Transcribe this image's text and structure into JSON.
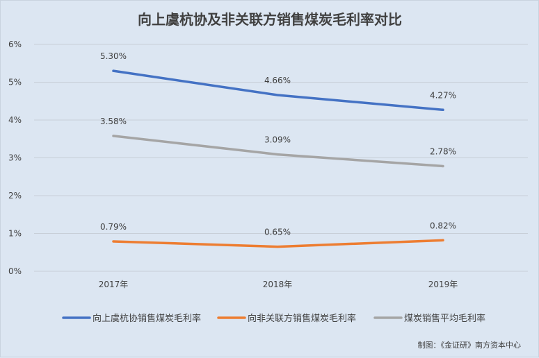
{
  "chart_data": {
    "type": "line",
    "title": "向上虞杭协及非关联方销售煤炭毛利率对比",
    "categories": [
      "2017年",
      "2018年",
      "2019年"
    ],
    "ylim": [
      0,
      6
    ],
    "yticks": [
      "0%",
      "1%",
      "2%",
      "3%",
      "4%",
      "5%",
      "6%"
    ],
    "grid": true,
    "legend": "bottom",
    "series": [
      {
        "name": "向上虞杭协销售煤炭毛利率",
        "values": [
          5.3,
          4.66,
          4.27
        ],
        "labels": [
          "5.30%",
          "4.66%",
          "4.27%"
        ],
        "color": "#4472c4"
      },
      {
        "name": "向非关联方销售煤炭毛利率",
        "values": [
          0.79,
          0.65,
          0.82
        ],
        "labels": [
          "0.79%",
          "0.65%",
          "0.82%"
        ],
        "color": "#ed7d31"
      },
      {
        "name": "煤炭销售平均毛利率",
        "values": [
          3.58,
          3.09,
          2.78
        ],
        "labels": [
          "3.58%",
          "3.09%",
          "2.78%"
        ],
        "color": "#a5a5a5"
      }
    ],
    "credit": "制图：《金证研》南方资本中心"
  }
}
